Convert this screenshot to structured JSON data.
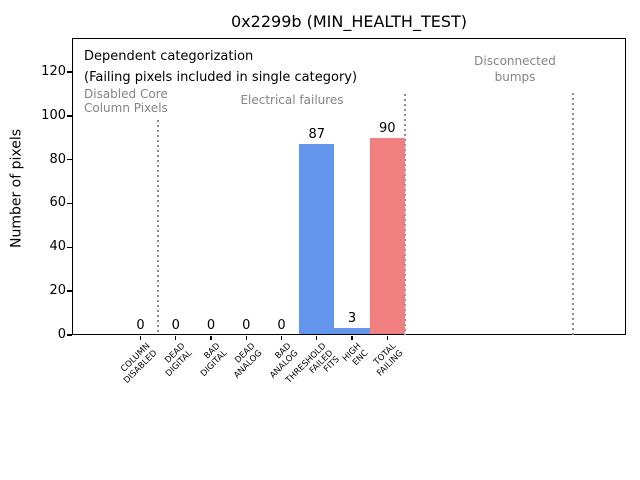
{
  "title": "0x2299b (MIN_HEALTH_TEST)",
  "ylabel": "Number of pixels",
  "annotations": {
    "dependent_line1": "Dependent categorization",
    "dependent_line2": "(Failing pixels included in single category)",
    "disabled_core_line1": "Disabled Core",
    "disabled_core_line2": "Column Pixels",
    "electrical": "Electrical failures",
    "disconnected_line1": "Disconnected",
    "disconnected_line2": "bumps"
  },
  "colors": {
    "bar_blue": "#6495ed",
    "bar_red": "#f08080",
    "annotation_gray": "#848484",
    "separator_gray": "#8c8c8c",
    "text_black": "#000000",
    "background": "#ffffff"
  },
  "chart_data": {
    "type": "bar",
    "title": "0x2299b (MIN_HEALTH_TEST)",
    "xlabel": "",
    "ylabel": "Number of pixels",
    "categories": [
      "COLUMN DISABLED",
      "DEAD DIGITAL",
      "BAD DIGITAL",
      "DEAD ANALOG",
      "BAD ANALOG",
      "THRESHOLD FAILED FITS",
      "HIGH ENC",
      "TOTAL FAILING"
    ],
    "category_label_lines": [
      [
        "COLUMN",
        "DISABLED"
      ],
      [
        "DEAD",
        "DIGITAL"
      ],
      [
        "BAD",
        "DIGITAL"
      ],
      [
        "DEAD",
        "ANALOG"
      ],
      [
        "BAD",
        "ANALOG"
      ],
      [
        "THRESHOLD",
        "FAILED",
        "FITS"
      ],
      [
        "HIGH",
        "ENC"
      ],
      [
        "TOTAL",
        "FAILING"
      ]
    ],
    "values": [
      0,
      0,
      0,
      0,
      0,
      87,
      3,
      90
    ],
    "bar_value_labels": [
      "0",
      "0",
      "0",
      "0",
      "0",
      "87",
      "3",
      "90"
    ],
    "bar_colors": [
      "#6495ed",
      "#6495ed",
      "#6495ed",
      "#6495ed",
      "#6495ed",
      "#6495ed",
      "#6495ed",
      "#f08080"
    ],
    "bar_width": 1.0,
    "yticks": [
      0,
      20,
      40,
      60,
      80,
      100,
      120
    ],
    "ylim": [
      0,
      135.5
    ],
    "grid": false,
    "legend": null,
    "region_annotations": [
      {
        "text": "Dependent categorization",
        "color": "black"
      },
      {
        "text": "(Failing pixels included in single category)",
        "color": "black"
      },
      {
        "text": "Disabled Core\nColumn Pixels",
        "color": "gray"
      },
      {
        "text": "Electrical failures",
        "color": "gray"
      },
      {
        "text": "Disconnected\nbumps",
        "color": "gray"
      }
    ],
    "separators_x": [
      0.5,
      7.5,
      12.27
    ]
  }
}
